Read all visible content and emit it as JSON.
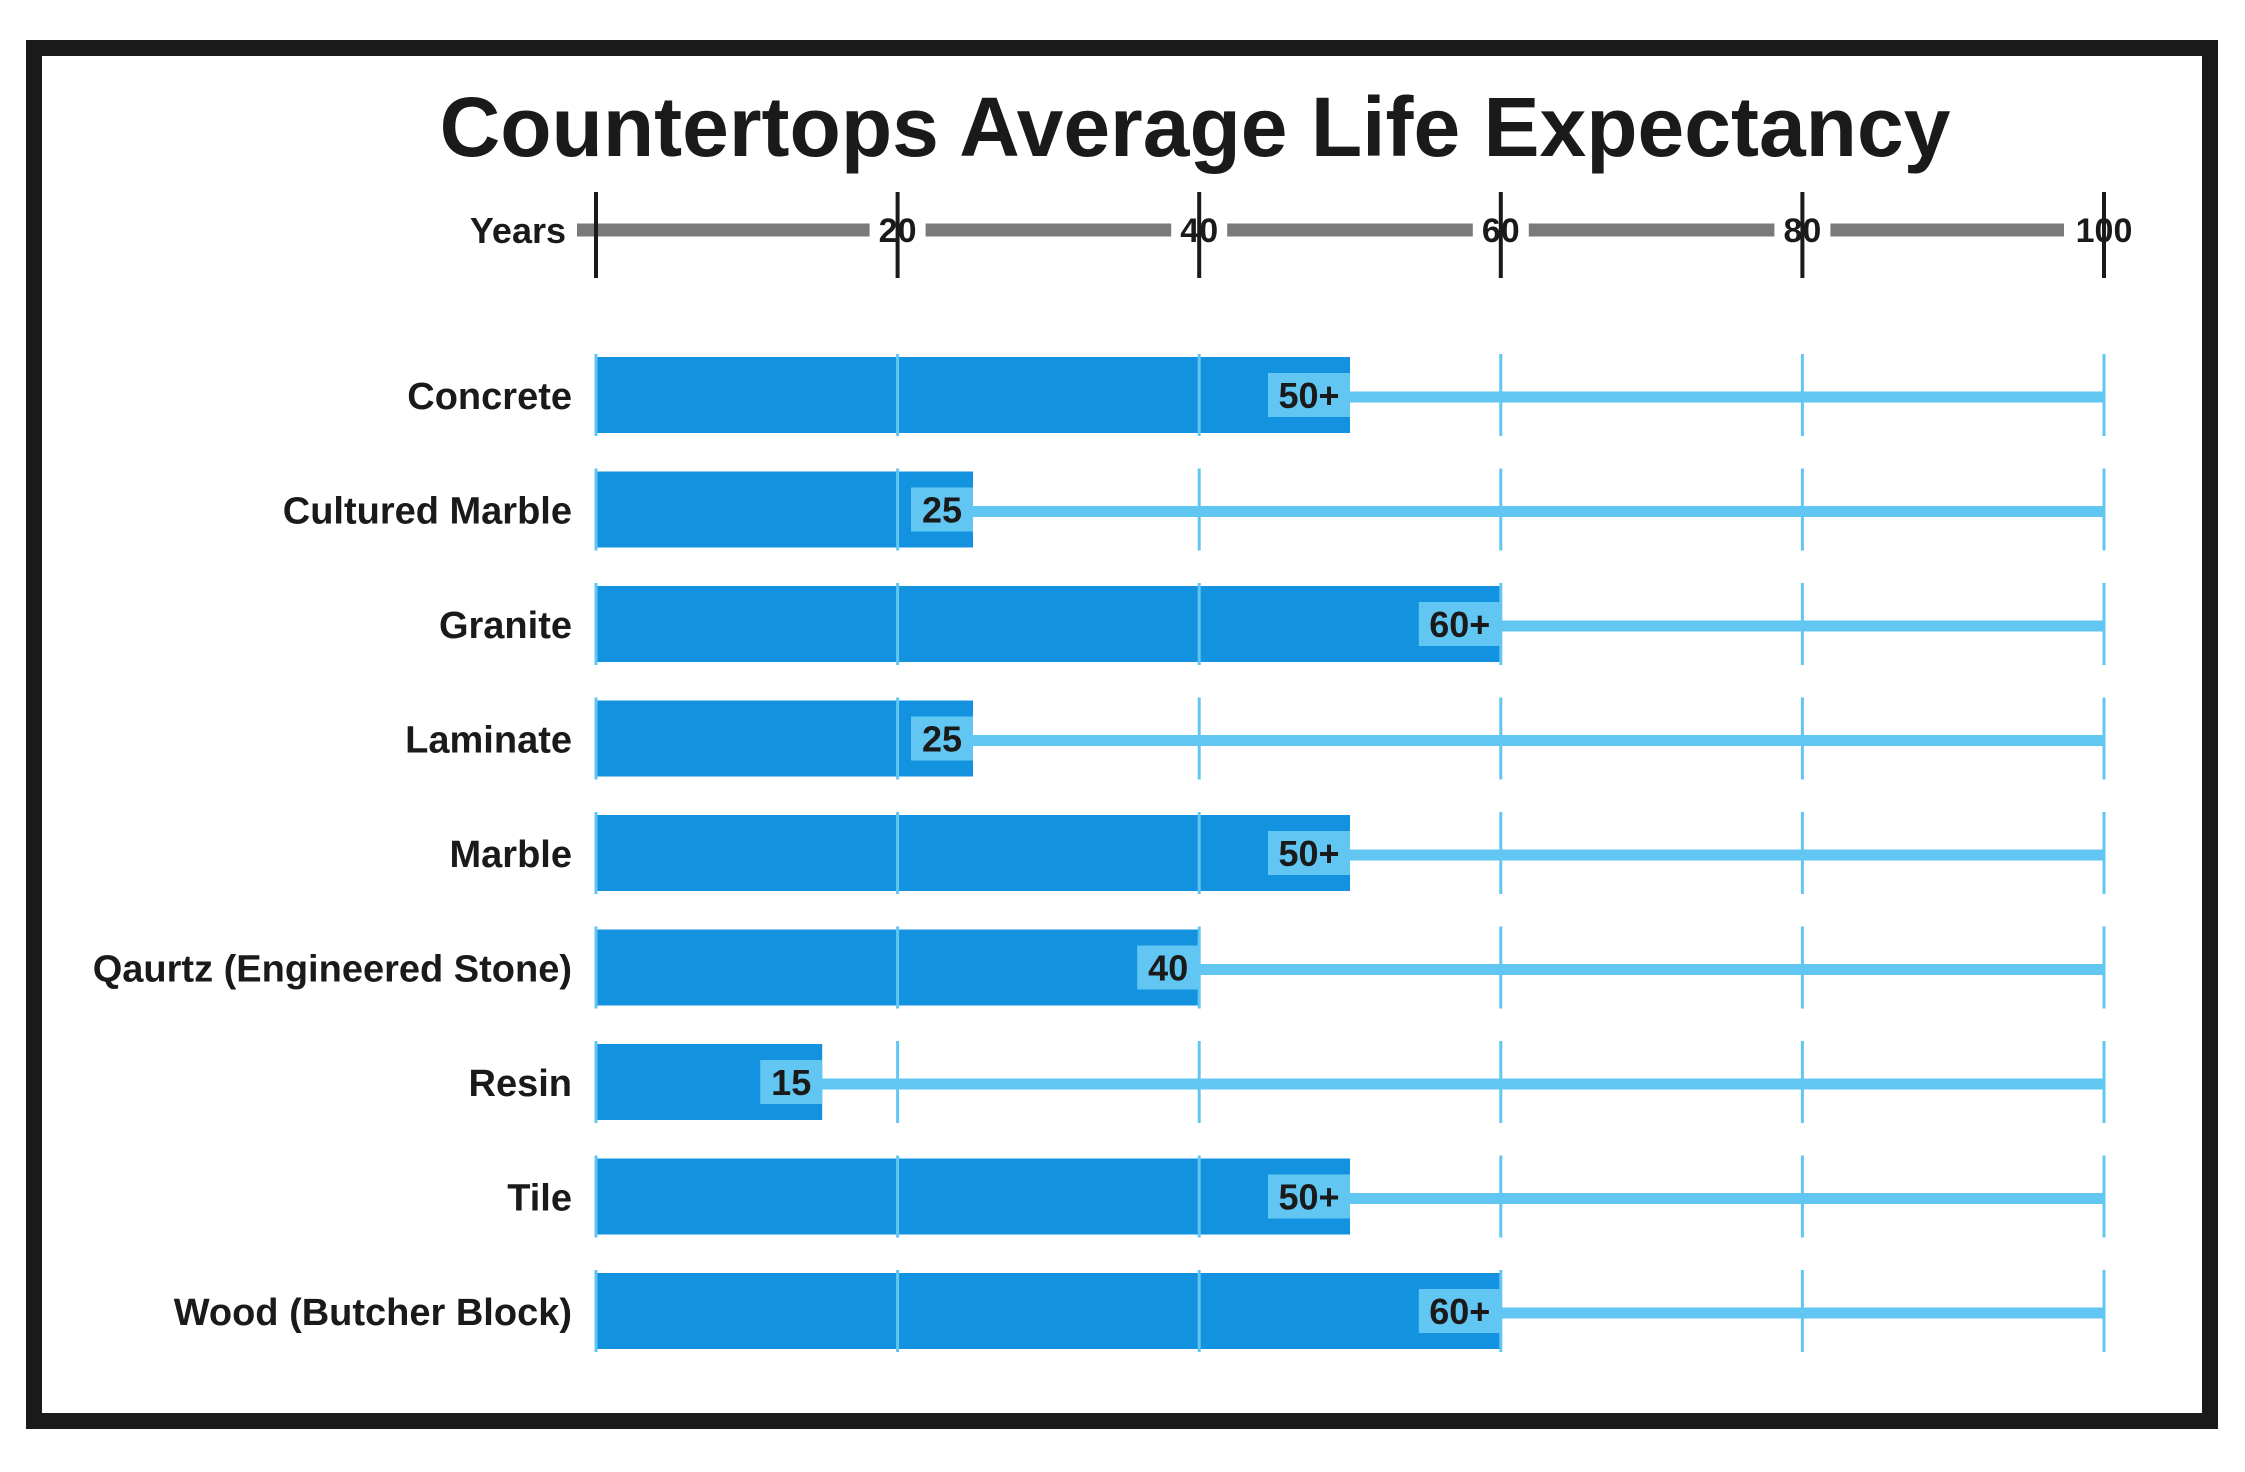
{
  "chart_data": {
    "type": "bar",
    "orientation": "horizontal",
    "title": "Countertops Average Life Expectancy",
    "axis_label": "Years",
    "xlim": [
      0,
      100
    ],
    "ticks": [
      0,
      20,
      40,
      60,
      80,
      100
    ],
    "tick_labels": [
      "",
      "20",
      "40",
      "60",
      "80",
      "100"
    ],
    "categories": [
      "Concrete",
      "Cultured Marble",
      "Granite",
      "Laminate",
      "Marble",
      "Qaurtz (Engineered Stone)",
      "Resin",
      "Tile",
      "Wood (Butcher Block)"
    ],
    "values": [
      50,
      25,
      60,
      25,
      50,
      40,
      15,
      50,
      60
    ],
    "data_labels": [
      "50+",
      "25",
      "60+",
      "25",
      "50+",
      "40",
      "15",
      "50+",
      "60+"
    ],
    "grid": true,
    "colors": {
      "bar": "#1392e0",
      "track": "#62c6f2",
      "label_bg": "#62c6f2",
      "axis": "#7a7a7a",
      "text": "#1a1a1a",
      "border": "#1a1a1a"
    }
  }
}
